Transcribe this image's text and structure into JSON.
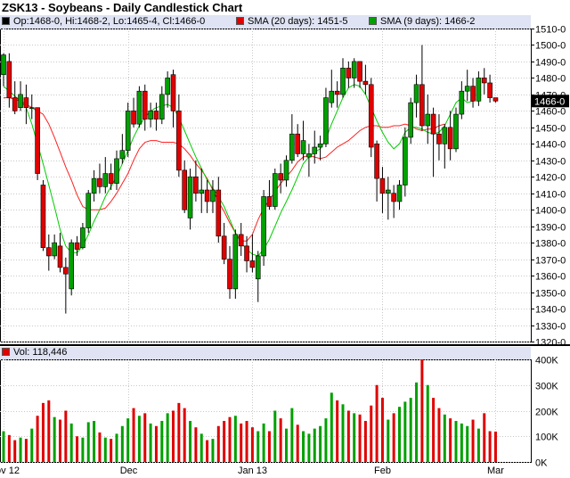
{
  "header": {
    "title": "ZSK13 - Soybeans - Daily Candlestick Chart",
    "ohlc": "Op:1468-0, Hi:1468-2, Lo:1465-4, Cl:1466-0",
    "sma20_label": "SMA (20 days): 1451-5",
    "sma9_label": "SMA (9 days): 1466-2",
    "vol_label": "Vol: 118,446"
  },
  "colors": {
    "up": "#00a000",
    "down": "#e00000",
    "sma20": "#ff2020",
    "sma9": "#00cc00",
    "panel_bg": "#dfe3f3",
    "grid": "#c8c8c8"
  },
  "chart_data": {
    "type": "candlestick",
    "title": "ZSK13 - Soybeans - Daily Candlestick Chart",
    "price_axis": {
      "ylim": [
        1320,
        1510
      ],
      "ticks": [
        "1320-0",
        "1330-0",
        "1340-0",
        "1350-0",
        "1360-0",
        "1370-0",
        "1380-0",
        "1390-0",
        "1400-0",
        "1410-0",
        "1420-0",
        "1430-0",
        "1440-0",
        "1450-0",
        "1460-0",
        "1470-0",
        "1480-0",
        "1490-0",
        "1500-0",
        "1510-0"
      ],
      "last_price_label": "1466-0",
      "last_price": 1466
    },
    "volume_axis": {
      "ylim": [
        0,
        400000
      ],
      "ticks": [
        {
          "v": 0,
          "label": "0K"
        },
        {
          "v": 100000,
          "label": "100K"
        },
        {
          "v": 200000,
          "label": "200K"
        },
        {
          "v": 300000,
          "label": "300K"
        },
        {
          "v": 400000,
          "label": "400K"
        }
      ]
    },
    "x_axis_labels": [
      {
        "label": "Nov 12",
        "index": 0
      },
      {
        "label": "Dec",
        "index": 22
      },
      {
        "label": "Jan 13",
        "index": 44
      },
      {
        "label": "Feb",
        "index": 67
      },
      {
        "label": "Mar",
        "index": 87
      }
    ],
    "grid": true,
    "candles": [
      {
        "o": 1482,
        "h": 1495,
        "l": 1475,
        "c": 1494,
        "v": 120000
      },
      {
        "o": 1490,
        "h": 1495,
        "l": 1462,
        "c": 1468,
        "v": 105000
      },
      {
        "o": 1468,
        "h": 1478,
        "l": 1458,
        "c": 1460,
        "v": 85000
      },
      {
        "o": 1462,
        "h": 1478,
        "l": 1460,
        "c": 1470,
        "v": 95000
      },
      {
        "o": 1468,
        "h": 1476,
        "l": 1452,
        "c": 1462,
        "v": 90000
      },
      {
        "o": 1462,
        "h": 1470,
        "l": 1455,
        "c": 1462,
        "v": 130000
      },
      {
        "o": 1462,
        "h": 1462,
        "l": 1418,
        "c": 1422,
        "v": 180000
      },
      {
        "o": 1415,
        "h": 1418,
        "l": 1375,
        "c": 1377,
        "v": 230000
      },
      {
        "o": 1377,
        "h": 1385,
        "l": 1363,
        "c": 1372,
        "v": 240000
      },
      {
        "o": 1372,
        "h": 1385,
        "l": 1370,
        "c": 1380,
        "v": 175000
      },
      {
        "o": 1378,
        "h": 1386,
        "l": 1362,
        "c": 1365,
        "v": 165000
      },
      {
        "o": 1365,
        "h": 1371,
        "l": 1337,
        "c": 1361,
        "v": 200000
      },
      {
        "o": 1352,
        "h": 1382,
        "l": 1348,
        "c": 1380,
        "v": 150000
      },
      {
        "o": 1380,
        "h": 1384,
        "l": 1372,
        "c": 1376,
        "v": 100000
      },
      {
        "o": 1377,
        "h": 1392,
        "l": 1376,
        "c": 1389,
        "v": 95000
      },
      {
        "o": 1389,
        "h": 1412,
        "l": 1386,
        "c": 1410,
        "v": 155000
      },
      {
        "o": 1410,
        "h": 1424,
        "l": 1405,
        "c": 1419,
        "v": 160000
      },
      {
        "o": 1419,
        "h": 1428,
        "l": 1410,
        "c": 1414,
        "v": 115000
      },
      {
        "o": 1414,
        "h": 1432,
        "l": 1410,
        "c": 1422,
        "v": 95000
      },
      {
        "o": 1422,
        "h": 1428,
        "l": 1412,
        "c": 1416,
        "v": 90000
      },
      {
        "o": 1416,
        "h": 1436,
        "l": 1412,
        "c": 1431,
        "v": 110000
      },
      {
        "o": 1431,
        "h": 1446,
        "l": 1428,
        "c": 1436,
        "v": 140000
      },
      {
        "o": 1436,
        "h": 1465,
        "l": 1432,
        "c": 1460,
        "v": 170000
      },
      {
        "o": 1460,
        "h": 1468,
        "l": 1450,
        "c": 1452,
        "v": 210000
      },
      {
        "o": 1452,
        "h": 1475,
        "l": 1450,
        "c": 1472,
        "v": 180000
      },
      {
        "o": 1472,
        "h": 1476,
        "l": 1448,
        "c": 1455,
        "v": 190000
      },
      {
        "o": 1455,
        "h": 1465,
        "l": 1450,
        "c": 1460,
        "v": 150000
      },
      {
        "o": 1460,
        "h": 1465,
        "l": 1448,
        "c": 1455,
        "v": 140000
      },
      {
        "o": 1455,
        "h": 1475,
        "l": 1452,
        "c": 1470,
        "v": 160000
      },
      {
        "o": 1470,
        "h": 1484,
        "l": 1462,
        "c": 1480,
        "v": 190000
      },
      {
        "o": 1482,
        "h": 1485,
        "l": 1450,
        "c": 1460,
        "v": 200000
      },
      {
        "o": 1460,
        "h": 1470,
        "l": 1420,
        "c": 1424,
        "v": 230000
      },
      {
        "o": 1424,
        "h": 1430,
        "l": 1398,
        "c": 1400,
        "v": 210000
      },
      {
        "o": 1395,
        "h": 1425,
        "l": 1388,
        "c": 1420,
        "v": 160000
      },
      {
        "o": 1420,
        "h": 1430,
        "l": 1405,
        "c": 1410,
        "v": 135000
      },
      {
        "o": 1410,
        "h": 1425,
        "l": 1398,
        "c": 1412,
        "v": 110000
      },
      {
        "o": 1412,
        "h": 1418,
        "l": 1398,
        "c": 1405,
        "v": 85000
      },
      {
        "o": 1405,
        "h": 1418,
        "l": 1398,
        "c": 1412,
        "v": 90000
      },
      {
        "o": 1412,
        "h": 1420,
        "l": 1380,
        "c": 1384,
        "v": 140000
      },
      {
        "o": 1384,
        "h": 1392,
        "l": 1367,
        "c": 1370,
        "v": 160000
      },
      {
        "o": 1370,
        "h": 1378,
        "l": 1346,
        "c": 1352,
        "v": 175000
      },
      {
        "o": 1352,
        "h": 1388,
        "l": 1346,
        "c": 1385,
        "v": 180000
      },
      {
        "o": 1385,
        "h": 1392,
        "l": 1372,
        "c": 1378,
        "v": 150000
      },
      {
        "o": 1378,
        "h": 1384,
        "l": 1362,
        "c": 1369,
        "v": 160000
      },
      {
        "o": 1369,
        "h": 1385,
        "l": 1362,
        "c": 1365,
        "v": 135000
      },
      {
        "o": 1358,
        "h": 1375,
        "l": 1344,
        "c": 1372,
        "v": 120000
      },
      {
        "o": 1372,
        "h": 1412,
        "l": 1366,
        "c": 1408,
        "v": 150000
      },
      {
        "o": 1408,
        "h": 1418,
        "l": 1400,
        "c": 1402,
        "v": 120000
      },
      {
        "o": 1402,
        "h": 1425,
        "l": 1400,
        "c": 1422,
        "v": 200000
      },
      {
        "o": 1422,
        "h": 1428,
        "l": 1410,
        "c": 1418,
        "v": 170000
      },
      {
        "o": 1418,
        "h": 1433,
        "l": 1414,
        "c": 1430,
        "v": 130000
      },
      {
        "o": 1430,
        "h": 1458,
        "l": 1428,
        "c": 1446,
        "v": 210000
      },
      {
        "o": 1446,
        "h": 1452,
        "l": 1432,
        "c": 1434,
        "v": 145000
      },
      {
        "o": 1434,
        "h": 1454,
        "l": 1430,
        "c": 1442,
        "v": 120000
      },
      {
        "o": 1432,
        "h": 1440,
        "l": 1420,
        "c": 1434,
        "v": 110000
      },
      {
        "o": 1434,
        "h": 1448,
        "l": 1428,
        "c": 1438,
        "v": 130000
      },
      {
        "o": 1438,
        "h": 1445,
        "l": 1430,
        "c": 1440,
        "v": 140000
      },
      {
        "o": 1440,
        "h": 1474,
        "l": 1438,
        "c": 1468,
        "v": 170000
      },
      {
        "o": 1465,
        "h": 1485,
        "l": 1462,
        "c": 1472,
        "v": 270000
      },
      {
        "o": 1472,
        "h": 1478,
        "l": 1462,
        "c": 1470,
        "v": 240000
      },
      {
        "o": 1470,
        "h": 1492,
        "l": 1468,
        "c": 1486,
        "v": 225000
      },
      {
        "o": 1486,
        "h": 1490,
        "l": 1474,
        "c": 1480,
        "v": 200000
      },
      {
        "o": 1480,
        "h": 1492,
        "l": 1474,
        "c": 1490,
        "v": 190000
      },
      {
        "o": 1490,
        "h": 1490,
        "l": 1474,
        "c": 1478,
        "v": 185000
      },
      {
        "o": 1478,
        "h": 1488,
        "l": 1470,
        "c": 1476,
        "v": 160000
      },
      {
        "o": 1476,
        "h": 1480,
        "l": 1432,
        "c": 1438,
        "v": 220000
      },
      {
        "o": 1440,
        "h": 1442,
        "l": 1405,
        "c": 1419,
        "v": 300000
      },
      {
        "o": 1419,
        "h": 1426,
        "l": 1398,
        "c": 1410,
        "v": 250000
      },
      {
        "o": 1410,
        "h": 1420,
        "l": 1394,
        "c": 1412,
        "v": 165000
      },
      {
        "o": 1410,
        "h": 1415,
        "l": 1395,
        "c": 1405,
        "v": 190000
      },
      {
        "o": 1405,
        "h": 1418,
        "l": 1400,
        "c": 1415,
        "v": 215000
      },
      {
        "o": 1415,
        "h": 1450,
        "l": 1408,
        "c": 1444,
        "v": 235000
      },
      {
        "o": 1444,
        "h": 1468,
        "l": 1440,
        "c": 1465,
        "v": 250000
      },
      {
        "o": 1465,
        "h": 1482,
        "l": 1456,
        "c": 1476,
        "v": 310000
      },
      {
        "o": 1476,
        "h": 1500,
        "l": 1448,
        "c": 1451,
        "v": 400000
      },
      {
        "o": 1451,
        "h": 1470,
        "l": 1440,
        "c": 1458,
        "v": 300000
      },
      {
        "o": 1458,
        "h": 1462,
        "l": 1420,
        "c": 1446,
        "v": 250000
      },
      {
        "o": 1446,
        "h": 1458,
        "l": 1430,
        "c": 1440,
        "v": 210000
      },
      {
        "o": 1440,
        "h": 1452,
        "l": 1425,
        "c": 1450,
        "v": 185000
      },
      {
        "o": 1450,
        "h": 1460,
        "l": 1430,
        "c": 1437,
        "v": 170000
      },
      {
        "o": 1437,
        "h": 1462,
        "l": 1435,
        "c": 1458,
        "v": 160000
      },
      {
        "o": 1458,
        "h": 1478,
        "l": 1455,
        "c": 1472,
        "v": 150000
      },
      {
        "o": 1472,
        "h": 1485,
        "l": 1466,
        "c": 1475,
        "v": 140000
      },
      {
        "o": 1475,
        "h": 1480,
        "l": 1462,
        "c": 1466,
        "v": 165000
      },
      {
        "o": 1466,
        "h": 1484,
        "l": 1463,
        "c": 1480,
        "v": 130000
      },
      {
        "o": 1480,
        "h": 1486,
        "l": 1470,
        "c": 1477,
        "v": 190000
      },
      {
        "o": 1477,
        "h": 1482,
        "l": 1465,
        "c": 1468,
        "v": 120000
      },
      {
        "o": 1468,
        "h": 1468,
        "l": 1465,
        "c": 1466,
        "v": 118446
      }
    ],
    "sma20": [
      1468,
      1468,
      1467,
      1466,
      1464,
      1462,
      1460,
      1458,
      1452,
      1444,
      1435,
      1426,
      1418,
      1409,
      1402,
      1400,
      1400,
      1400,
      1401,
      1405,
      1410,
      1416,
      1422,
      1430,
      1437,
      1441,
      1442,
      1442,
      1441,
      1441,
      1441,
      1440,
      1437,
      1433,
      1428,
      1424,
      1419,
      1412,
      1405,
      1399,
      1392,
      1386,
      1381,
      1381,
      1385,
      1394,
      1401,
      1406,
      1411,
      1416,
      1420,
      1424,
      1429,
      1432,
      1433,
      1432,
      1431,
      1432,
      1435,
      1438,
      1440,
      1442,
      1445,
      1448,
      1450,
      1451,
      1451,
      1450,
      1450,
      1451,
      1451,
      1452,
      1451,
      1449,
      1448,
      1449,
      1449,
      1451,
      1452
    ],
    "sma9": [
      1475,
      1472,
      1469,
      1466,
      1462,
      1452,
      1440,
      1428,
      1415,
      1402,
      1388,
      1378,
      1374,
      1374,
      1378,
      1385,
      1393,
      1400,
      1408,
      1414,
      1420,
      1428,
      1436,
      1444,
      1451,
      1456,
      1460,
      1462,
      1463,
      1464,
      1462,
      1456,
      1448,
      1440,
      1432,
      1425,
      1418,
      1413,
      1408,
      1402,
      1394,
      1386,
      1380,
      1376,
      1373,
      1372,
      1376,
      1382,
      1390,
      1398,
      1405,
      1412,
      1420,
      1428,
      1432,
      1435,
      1437,
      1443,
      1452,
      1460,
      1468,
      1474,
      1476,
      1475,
      1470,
      1462,
      1454,
      1447,
      1441,
      1437,
      1440,
      1447,
      1450,
      1450,
      1449,
      1447,
      1446,
      1447,
      1451,
      1458,
      1465,
      1468,
      1465,
      1466
    ]
  }
}
